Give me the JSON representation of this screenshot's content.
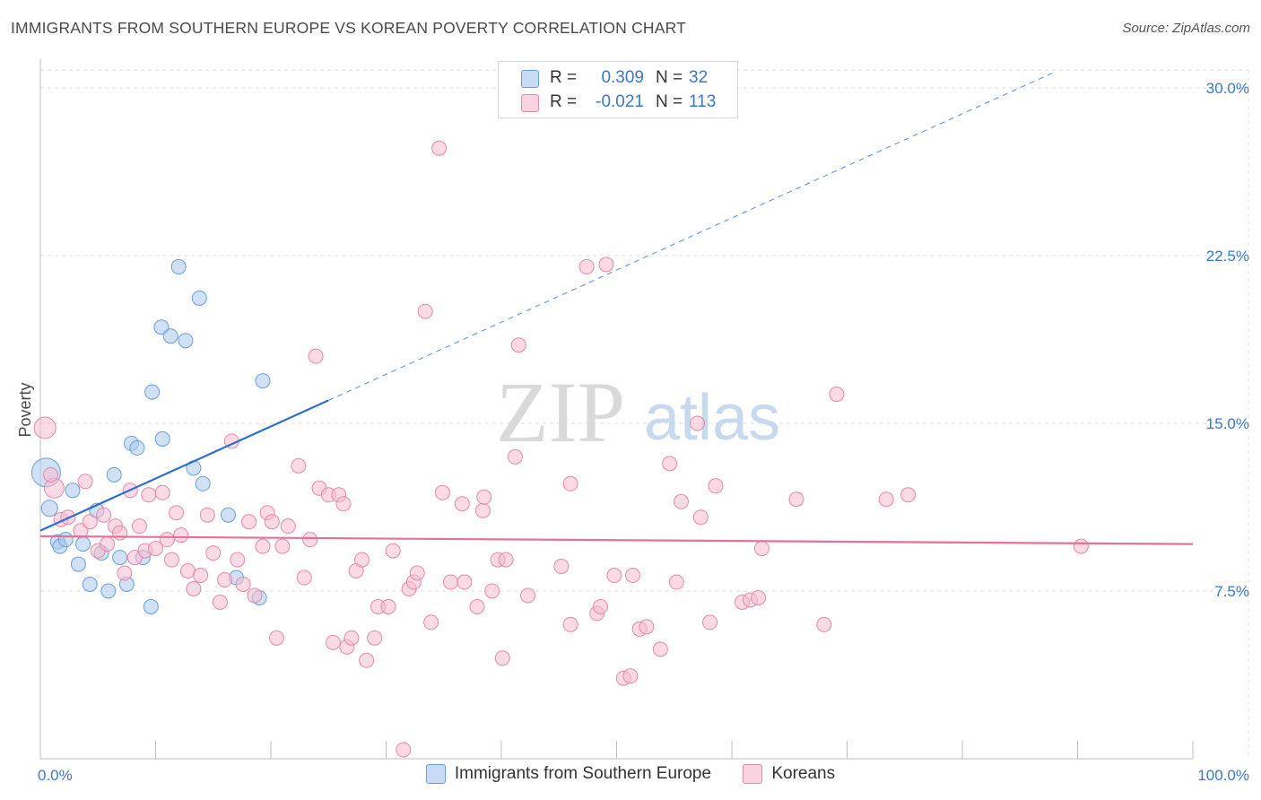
{
  "chart_data": {
    "type": "scatter",
    "title": "IMMIGRANTS FROM SOUTHERN EUROPE VS KOREAN POVERTY CORRELATION CHART",
    "source": "Source: ZipAtlas.com",
    "xlabel": "",
    "ylabel": "Poverty",
    "xlim": [
      0,
      100
    ],
    "ylim": [
      0,
      30.8
    ],
    "x_tick_labels": [
      "0.0%",
      "100.0%"
    ],
    "x_minor_ticks": [
      10,
      20,
      30,
      40,
      50,
      60,
      70,
      80,
      90
    ],
    "y_ticks": [
      {
        "value": 7.5,
        "label": "7.5%"
      },
      {
        "value": 15.0,
        "label": "15.0%"
      },
      {
        "value": 22.5,
        "label": "22.5%"
      },
      {
        "value": 30.0,
        "label": "30.0%"
      }
    ],
    "grid": true,
    "watermark": {
      "zip": "ZIP",
      "atlas": "atlas"
    },
    "stats": [
      {
        "r_label": "R =",
        "r_value": "0.309",
        "n_label": "N =",
        "n_value": "32"
      },
      {
        "r_label": "R =",
        "r_value": "-0.021",
        "n_label": "N =",
        "n_value": "113"
      }
    ],
    "series": [
      {
        "name": "Immigrants from Southern Europe",
        "color": "#a9c8ee",
        "edge": "#6a9fd8",
        "trend_color": "#2f6fcc",
        "trend": {
          "x0": 0,
          "y0": 10.2,
          "x1": 100,
          "y1": 33.5,
          "solid_until": 25
        },
        "points": [
          [
            0.5,
            12.8,
            16
          ],
          [
            0.8,
            11.2,
            9
          ],
          [
            1.5,
            9.7,
            8
          ],
          [
            1.7,
            9.5,
            8
          ],
          [
            2.2,
            9.8,
            8
          ],
          [
            2.8,
            12.0,
            8
          ],
          [
            3.3,
            8.7,
            8
          ],
          [
            3.7,
            9.6,
            8
          ],
          [
            4.3,
            7.8,
            8
          ],
          [
            4.9,
            11.1,
            8
          ],
          [
            5.3,
            9.2,
            8
          ],
          [
            5.9,
            7.5,
            8
          ],
          [
            6.4,
            12.7,
            8
          ],
          [
            6.9,
            9.0,
            8
          ],
          [
            7.5,
            7.8,
            8
          ],
          [
            7.9,
            14.1,
            8
          ],
          [
            8.4,
            13.9,
            8
          ],
          [
            8.9,
            9.0,
            8
          ],
          [
            9.6,
            6.8,
            8
          ],
          [
            9.7,
            16.4,
            8
          ],
          [
            10.6,
            14.3,
            8
          ],
          [
            10.5,
            19.3,
            8
          ],
          [
            11.3,
            18.9,
            8
          ],
          [
            12.0,
            22.0,
            8
          ],
          [
            12.6,
            18.7,
            8
          ],
          [
            13.3,
            13.0,
            8
          ],
          [
            13.8,
            20.6,
            8
          ],
          [
            14.1,
            12.3,
            8
          ],
          [
            16.3,
            10.9,
            8
          ],
          [
            17.0,
            8.1,
            8
          ],
          [
            19.0,
            7.2,
            8
          ],
          [
            19.3,
            16.9,
            8
          ]
        ]
      },
      {
        "name": "Koreans",
        "color": "#f7bcd0",
        "edge": "#e38aa9",
        "trend_color": "#e5709a",
        "trend": {
          "x0": 0,
          "y0": 9.95,
          "x1": 100,
          "y1": 9.6,
          "solid_until": 100
        },
        "points": [
          [
            0.4,
            14.8,
            12
          ],
          [
            1.2,
            12.1,
            11
          ],
          [
            0.9,
            12.7,
            8
          ],
          [
            1.8,
            10.7,
            8
          ],
          [
            2.4,
            10.8,
            8
          ],
          [
            3.5,
            10.2,
            8
          ],
          [
            3.9,
            12.4,
            8
          ],
          [
            4.3,
            10.6,
            8
          ],
          [
            5.0,
            9.3,
            8
          ],
          [
            5.5,
            10.9,
            8
          ],
          [
            5.8,
            9.6,
            8
          ],
          [
            6.5,
            10.4,
            8
          ],
          [
            6.9,
            10.1,
            8
          ],
          [
            7.3,
            8.3,
            8
          ],
          [
            7.8,
            12.0,
            8
          ],
          [
            8.2,
            9.0,
            8
          ],
          [
            8.6,
            10.4,
            8
          ],
          [
            9.1,
            9.3,
            8
          ],
          [
            9.4,
            11.8,
            8
          ],
          [
            10.0,
            9.4,
            8
          ],
          [
            10.6,
            11.9,
            8
          ],
          [
            11.0,
            9.8,
            8
          ],
          [
            11.4,
            8.9,
            8
          ],
          [
            11.8,
            11.0,
            8
          ],
          [
            12.2,
            10.0,
            8
          ],
          [
            12.8,
            8.4,
            8
          ],
          [
            13.3,
            7.6,
            8
          ],
          [
            13.9,
            8.2,
            8
          ],
          [
            14.5,
            10.9,
            8
          ],
          [
            15.0,
            9.2,
            8
          ],
          [
            15.6,
            7.0,
            8
          ],
          [
            16.0,
            8.0,
            8
          ],
          [
            16.6,
            14.2,
            8
          ],
          [
            17.1,
            8.9,
            8
          ],
          [
            17.6,
            7.8,
            8
          ],
          [
            18.1,
            10.6,
            8
          ],
          [
            18.6,
            7.3,
            8
          ],
          [
            19.3,
            9.5,
            8
          ],
          [
            19.7,
            11.0,
            8
          ],
          [
            20.1,
            10.6,
            8
          ],
          [
            20.5,
            5.4,
            8
          ],
          [
            21.0,
            9.5,
            8
          ],
          [
            21.5,
            10.4,
            8
          ],
          [
            22.4,
            13.1,
            8
          ],
          [
            22.9,
            8.1,
            8
          ],
          [
            23.4,
            9.8,
            8
          ],
          [
            23.9,
            18.0,
            8
          ],
          [
            24.2,
            12.1,
            8
          ],
          [
            25.0,
            11.8,
            8
          ],
          [
            25.4,
            5.2,
            8
          ],
          [
            25.9,
            11.8,
            8
          ],
          [
            26.3,
            11.4,
            8
          ],
          [
            26.6,
            5.0,
            8
          ],
          [
            27.0,
            5.4,
            8
          ],
          [
            27.4,
            8.4,
            8
          ],
          [
            27.9,
            8.9,
            8
          ],
          [
            28.3,
            4.4,
            8
          ],
          [
            29.0,
            5.4,
            8
          ],
          [
            29.3,
            6.8,
            8
          ],
          [
            30.2,
            6.8,
            8
          ],
          [
            30.6,
            9.3,
            8
          ],
          [
            31.5,
            0.4,
            8
          ],
          [
            32.0,
            7.6,
            8
          ],
          [
            32.4,
            7.9,
            8
          ],
          [
            32.7,
            8.3,
            8
          ],
          [
            33.4,
            20.0,
            8
          ],
          [
            33.9,
            6.1,
            8
          ],
          [
            34.6,
            27.3,
            8
          ],
          [
            34.9,
            11.9,
            8
          ],
          [
            35.6,
            7.9,
            8
          ],
          [
            36.6,
            11.4,
            8
          ],
          [
            36.8,
            7.9,
            8
          ],
          [
            37.9,
            6.8,
            8
          ],
          [
            38.4,
            11.1,
            8
          ],
          [
            38.5,
            11.7,
            8
          ],
          [
            39.2,
            7.5,
            8
          ],
          [
            39.7,
            8.9,
            8
          ],
          [
            40.1,
            4.5,
            8
          ],
          [
            40.4,
            8.9,
            8
          ],
          [
            41.2,
            13.5,
            8
          ],
          [
            41.5,
            18.5,
            8
          ],
          [
            42.3,
            7.3,
            8
          ],
          [
            45.2,
            8.6,
            8
          ],
          [
            46.0,
            12.3,
            8
          ],
          [
            47.4,
            22.0,
            8
          ],
          [
            48.3,
            6.5,
            8
          ],
          [
            48.6,
            6.8,
            8
          ],
          [
            49.1,
            22.1,
            8
          ],
          [
            49.8,
            8.2,
            8
          ],
          [
            50.6,
            3.6,
            8
          ],
          [
            51.2,
            3.7,
            8
          ],
          [
            51.4,
            8.2,
            8
          ],
          [
            52.0,
            5.8,
            8
          ],
          [
            52.6,
            5.9,
            8
          ],
          [
            53.8,
            4.9,
            8
          ],
          [
            54.6,
            13.2,
            8
          ],
          [
            55.6,
            11.5,
            8
          ],
          [
            57.0,
            15.0,
            8
          ],
          [
            57.3,
            10.8,
            8
          ],
          [
            58.1,
            6.1,
            8
          ],
          [
            58.6,
            12.2,
            8
          ],
          [
            60.9,
            7.0,
            8
          ],
          [
            61.6,
            7.1,
            8
          ],
          [
            62.3,
            7.2,
            8
          ],
          [
            62.6,
            9.4,
            8
          ],
          [
            65.6,
            11.6,
            8
          ],
          [
            68.0,
            6.0,
            8
          ],
          [
            69.1,
            16.3,
            8
          ],
          [
            73.4,
            11.6,
            8
          ],
          [
            75.3,
            11.8,
            8
          ],
          [
            90.3,
            9.5,
            8
          ],
          [
            55.2,
            7.9,
            8
          ],
          [
            46.0,
            6.0,
            8
          ]
        ]
      }
    ]
  }
}
